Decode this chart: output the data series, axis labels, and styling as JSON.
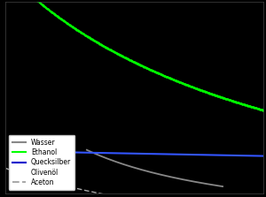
{
  "background_color": "#000000",
  "legend_labels": [
    "Wasser",
    "Ethanol",
    "Quecksilber",
    "Olivenöl",
    "Aceton"
  ],
  "legend_colors": [
    "#888888",
    "#00ff00",
    "#0000cc",
    "#ffffff",
    "#aaaaaa"
  ],
  "legend_styles": [
    "-",
    "-",
    "-",
    "-",
    "--"
  ],
  "xlim": [
    -60,
    130
  ],
  "ylim": [
    0.2,
    3000
  ],
  "figsize": [
    3.0,
    2.23
  ],
  "dpi": 100
}
